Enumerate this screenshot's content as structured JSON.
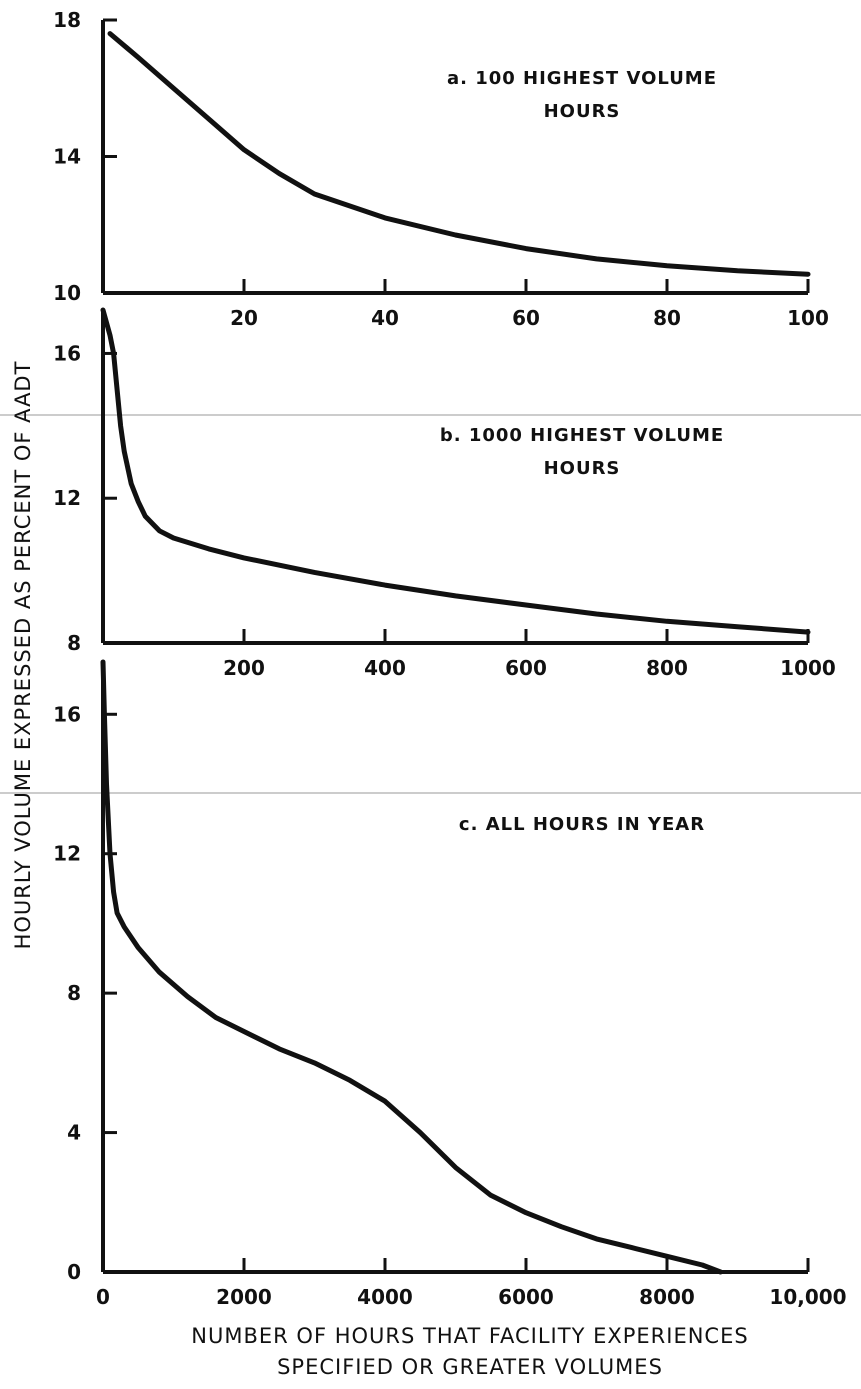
{
  "figure": {
    "ylabel": "HOURLY VOLUME EXPRESSED AS PERCENT OF AADT",
    "xlabel_lines": [
      "NUMBER OF HOURS THAT FACILITY EXPERIENCES",
      "SPECIFIED OR GREATER VOLUMES"
    ]
  },
  "chart_data": [
    {
      "type": "line",
      "title_lines": [
        "a. 100 HIGHEST VOLUME",
        "HOURS"
      ],
      "xlim": [
        0,
        100
      ],
      "ylim": [
        10,
        18
      ],
      "x_ticks": [
        20,
        40,
        60,
        80,
        100
      ],
      "x_tick_labels": [
        "20",
        "40",
        "60",
        "80",
        "100"
      ],
      "y_ticks": [
        10,
        14,
        18
      ],
      "y_tick_labels": [
        "10",
        "14",
        "18"
      ],
      "series": [
        {
          "x": [
            1,
            5,
            10,
            15,
            20,
            25,
            30,
            40,
            50,
            60,
            70,
            80,
            90,
            100
          ],
          "y": [
            17.6,
            16.9,
            16.0,
            15.1,
            14.2,
            13.5,
            12.9,
            12.2,
            11.7,
            11.3,
            11.0,
            10.8,
            10.65,
            10.55
          ]
        }
      ]
    },
    {
      "type": "line",
      "title_lines": [
        "b. 1000 HIGHEST VOLUME",
        "HOURS"
      ],
      "xlim": [
        0,
        1000
      ],
      "ylim": [
        8,
        17.2
      ],
      "x_ticks": [
        200,
        400,
        600,
        800,
        1000
      ],
      "x_tick_labels": [
        "200",
        "400",
        "600",
        "800",
        "1000"
      ],
      "y_ticks": [
        8,
        12,
        16
      ],
      "y_tick_labels": [
        "8",
        "12",
        "16"
      ],
      "series": [
        {
          "x": [
            0,
            10,
            15,
            20,
            25,
            30,
            40,
            50,
            60,
            80,
            100,
            150,
            200,
            300,
            400,
            500,
            600,
            700,
            800,
            900,
            1000
          ],
          "y": [
            17.2,
            16.5,
            16.0,
            15.0,
            14.0,
            13.3,
            12.4,
            11.9,
            11.5,
            11.1,
            10.9,
            10.6,
            10.35,
            9.95,
            9.6,
            9.3,
            9.05,
            8.8,
            8.6,
            8.45,
            8.3
          ]
        }
      ]
    },
    {
      "type": "line",
      "title_lines": [
        "c. ALL HOURS IN YEAR"
      ],
      "xlim": [
        0,
        10000
      ],
      "ylim": [
        0,
        17.5
      ],
      "x_ticks": [
        0,
        2000,
        4000,
        6000,
        8000,
        10000
      ],
      "x_tick_labels": [
        "0",
        "2000",
        "4000",
        "6000",
        "8000",
        "10,000"
      ],
      "y_ticks": [
        0,
        4,
        8,
        12,
        16
      ],
      "y_tick_labels": [
        "0",
        "4",
        "8",
        "12",
        "16"
      ],
      "series": [
        {
          "x": [
            0,
            20,
            50,
            100,
            150,
            200,
            300,
            500,
            800,
            1200,
            1600,
            2000,
            2500,
            3000,
            3500,
            4000,
            4500,
            5000,
            5500,
            6000,
            6500,
            7000,
            7500,
            8000,
            8500,
            8760
          ],
          "y": [
            17.5,
            16.0,
            14.0,
            12.0,
            10.9,
            10.3,
            9.9,
            9.3,
            8.6,
            7.9,
            7.3,
            6.9,
            6.4,
            6.0,
            5.5,
            4.9,
            4.0,
            3.0,
            2.2,
            1.7,
            1.3,
            0.95,
            0.7,
            0.45,
            0.2,
            0.0
          ]
        }
      ]
    }
  ]
}
